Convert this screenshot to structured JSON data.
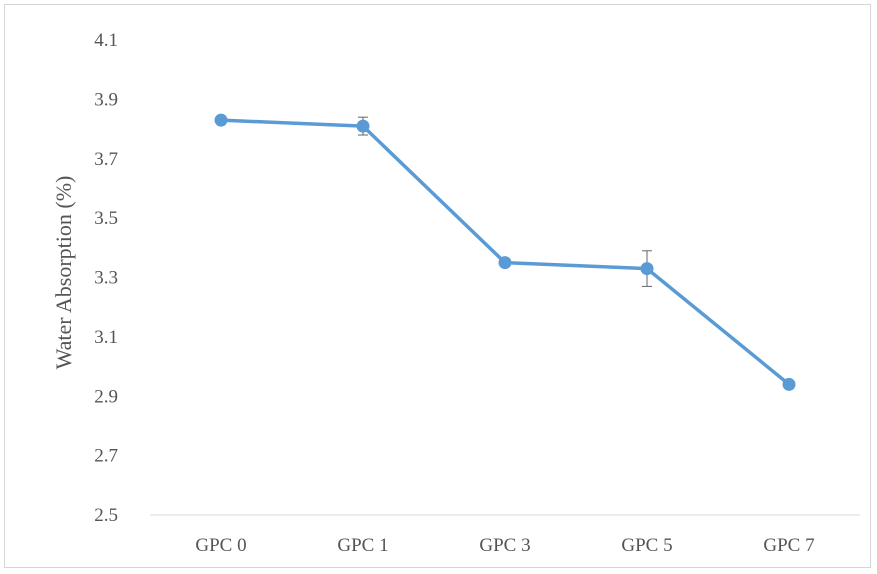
{
  "chart_data": {
    "type": "line",
    "title": "",
    "xlabel": "",
    "ylabel": "Water Absorption (%)",
    "categories": [
      "GPC 0",
      "GPC 1",
      "GPC 3",
      "GPC 5",
      "GPC 7"
    ],
    "ylim": [
      2.5,
      4.1
    ],
    "yticks": [
      2.5,
      2.7,
      2.9,
      3.1,
      3.3,
      3.5,
      3.7,
      3.9,
      4.1
    ],
    "ytick_labels": [
      "2.5",
      "2.7",
      "2.9",
      "3.1",
      "3.3",
      "3.5",
      "3.7",
      "3.9",
      "4.1"
    ],
    "grid": false,
    "legend": "none",
    "series": [
      {
        "values": [
          3.83,
          3.81,
          3.35,
          3.33,
          2.94
        ],
        "errors": [
          0.0,
          0.03,
          0.0,
          0.06,
          0.0
        ],
        "color": "#5b9bd5"
      }
    ]
  }
}
